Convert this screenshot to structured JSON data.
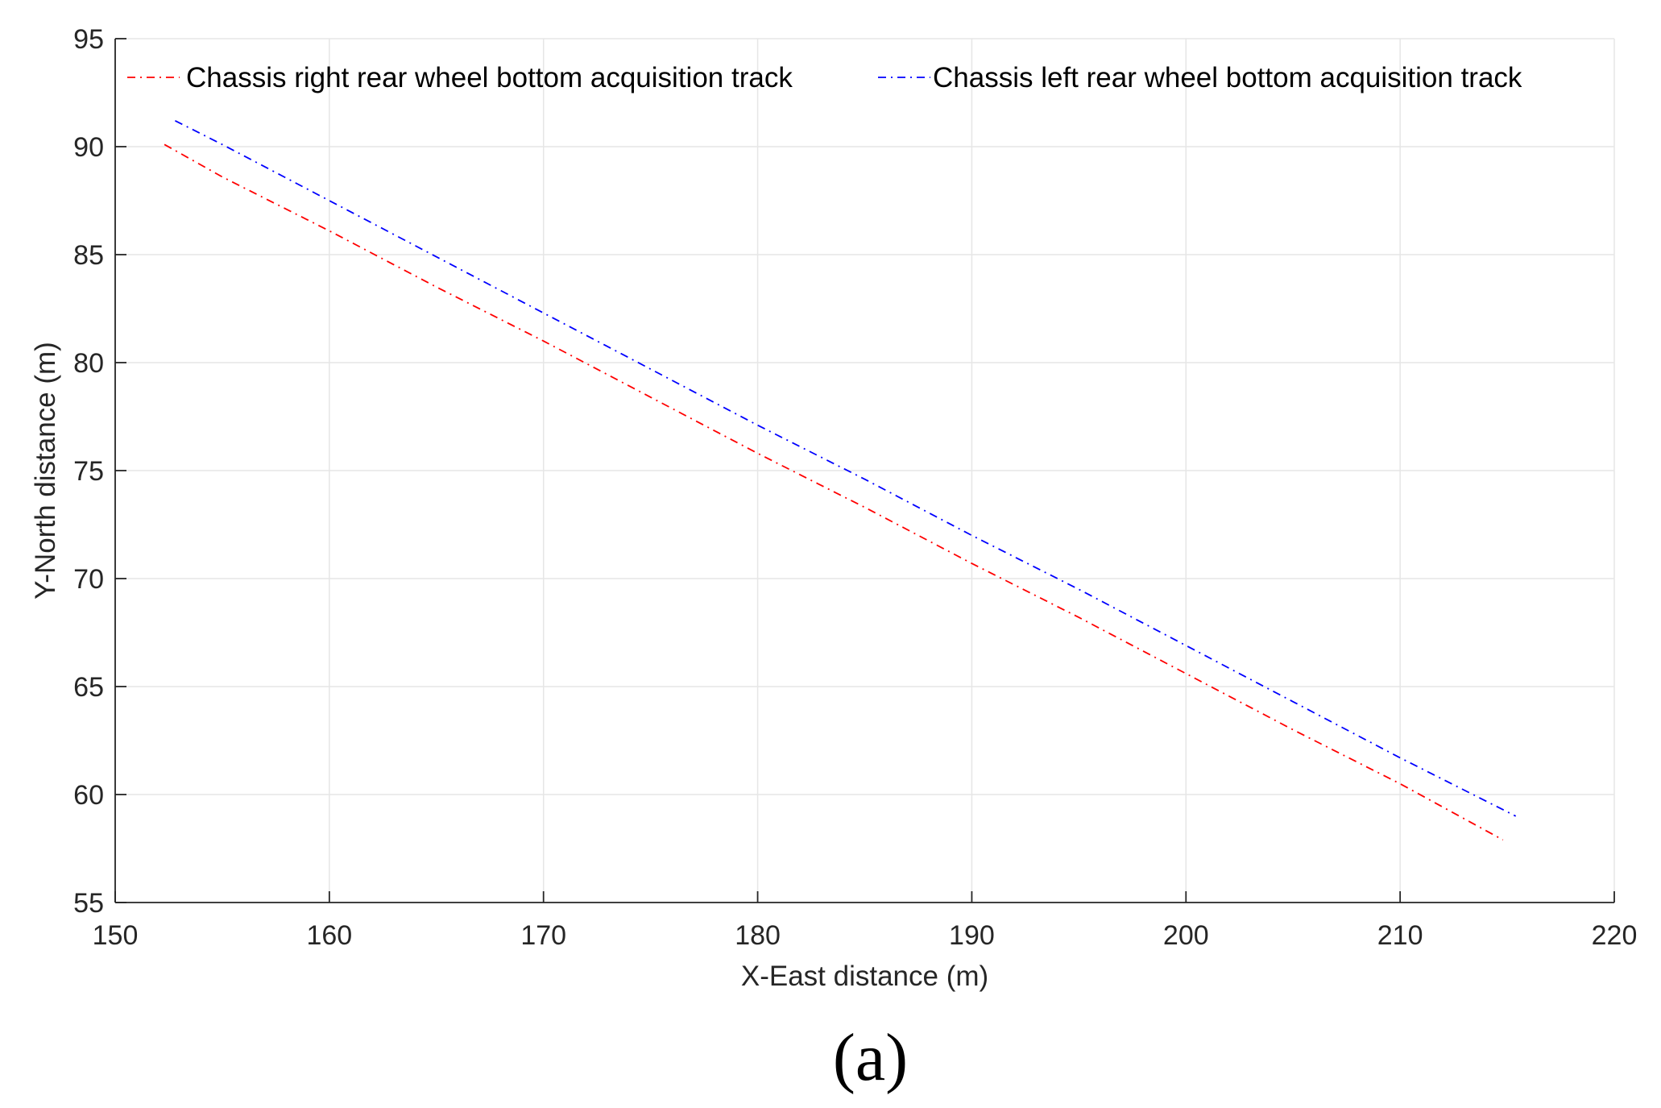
{
  "chart_data": {
    "type": "line",
    "xlabel": "X-East distance (m)",
    "ylabel": "Y-North distance (m)",
    "xlim": [
      150,
      220
    ],
    "ylim": [
      55,
      95
    ],
    "xticks": [
      150,
      160,
      170,
      180,
      190,
      200,
      210,
      220
    ],
    "yticks": [
      55,
      60,
      65,
      70,
      75,
      80,
      85,
      90,
      95
    ],
    "grid": true,
    "legend_position": "top",
    "series": [
      {
        "name": "Chassis right rear wheel bottom acquisition track",
        "color": "#ff0000",
        "line_style": "dash-dot",
        "x": [
          152.3,
          155,
          160,
          165,
          170,
          175,
          180,
          185,
          190,
          195,
          200,
          205,
          210,
          214.8
        ],
        "y": [
          90.1,
          88.6,
          86.1,
          83.5,
          81.0,
          78.4,
          75.8,
          73.3,
          70.7,
          68.2,
          65.6,
          63.0,
          60.5,
          57.9
        ]
      },
      {
        "name": "Chassis left rear wheel bottom acquisition track",
        "color": "#0000ff",
        "line_style": "dash-dot",
        "x": [
          152.8,
          155,
          160,
          165,
          170,
          175,
          180,
          185,
          190,
          195,
          200,
          205,
          210,
          215.4
        ],
        "y": [
          91.2,
          90.1,
          87.5,
          84.9,
          82.3,
          79.7,
          77.1,
          74.6,
          72.0,
          69.5,
          66.9,
          64.3,
          61.7,
          59.0
        ]
      }
    ]
  },
  "panel_label": "(a)"
}
